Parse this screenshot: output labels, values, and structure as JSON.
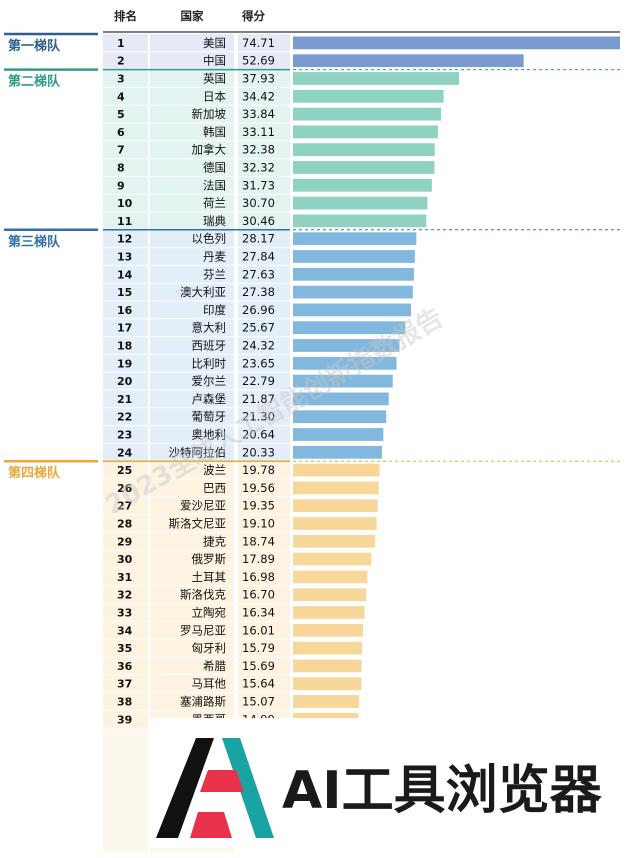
{
  "chart_data": {
    "type": "bar",
    "columns": [
      "排名",
      "国家",
      "得分"
    ],
    "colors": {
      "tier1": "#7b9bd0",
      "tier2": "#8fd2c2",
      "tier3": "#82b8dd",
      "tier4": "#f8d79a",
      "tier1_label": "#2f5f8e",
      "tier2_label": "#2f9a8a",
      "tier3_label": "#3070aa",
      "tier4_label": "#e6a93a"
    },
    "tiers": [
      {
        "label": "第一梯队",
        "start_rank": 1,
        "end_rank": 2,
        "color_key": "tier1"
      },
      {
        "label": "第二梯队",
        "start_rank": 3,
        "end_rank": 11,
        "color_key": "tier2"
      },
      {
        "label": "第三梯队",
        "start_rank": 12,
        "end_rank": 24,
        "color_key": "tier3"
      },
      {
        "label": "第四梯队",
        "start_rank": 25,
        "end_rank": 39,
        "color_key": "tier4"
      }
    ],
    "rows": [
      {
        "rank": "1",
        "country": "美国",
        "score": 74.71
      },
      {
        "rank": "2",
        "country": "中国",
        "score": 52.69
      },
      {
        "rank": "3",
        "country": "英国",
        "score": 37.93
      },
      {
        "rank": "4",
        "country": "日本",
        "score": 34.42
      },
      {
        "rank": "5",
        "country": "新加坡",
        "score": 33.84
      },
      {
        "rank": "6",
        "country": "韩国",
        "score": 33.11
      },
      {
        "rank": "7",
        "country": "加拿大",
        "score": 32.38
      },
      {
        "rank": "8",
        "country": "德国",
        "score": 32.32
      },
      {
        "rank": "9",
        "country": "法国",
        "score": 31.73
      },
      {
        "rank": "10",
        "country": "荷兰",
        "score": 30.7
      },
      {
        "rank": "11",
        "country": "瑞典",
        "score": 30.46
      },
      {
        "rank": "12",
        "country": "以色列",
        "score": 28.17
      },
      {
        "rank": "13",
        "country": "丹麦",
        "score": 27.84
      },
      {
        "rank": "14",
        "country": "芬兰",
        "score": 27.63
      },
      {
        "rank": "15",
        "country": "澳大利亚",
        "score": 27.38
      },
      {
        "rank": "16",
        "country": "印度",
        "score": 26.96
      },
      {
        "rank": "17",
        "country": "意大利",
        "score": 25.67
      },
      {
        "rank": "18",
        "country": "西班牙",
        "score": 24.32
      },
      {
        "rank": "19",
        "country": "比利时",
        "score": 23.65
      },
      {
        "rank": "20",
        "country": "爱尔兰",
        "score": 22.79
      },
      {
        "rank": "21",
        "country": "卢森堡",
        "score": 21.87
      },
      {
        "rank": "22",
        "country": "葡萄牙",
        "score": 21.3
      },
      {
        "rank": "23",
        "country": "奥地利",
        "score": 20.64
      },
      {
        "rank": "24",
        "country": "沙特阿拉伯",
        "score": 20.33
      },
      {
        "rank": "25",
        "country": "波兰",
        "score": 19.78
      },
      {
        "rank": "26",
        "country": "巴西",
        "score": 19.56
      },
      {
        "rank": "27",
        "country": "爱沙尼亚",
        "score": 19.35
      },
      {
        "rank": "28",
        "country": "斯洛文尼亚",
        "score": 19.1
      },
      {
        "rank": "29",
        "country": "捷克",
        "score": 18.74
      },
      {
        "rank": "30",
        "country": "俄罗斯",
        "score": 17.89
      },
      {
        "rank": "31",
        "country": "土耳其",
        "score": 16.98
      },
      {
        "rank": "32",
        "country": "斯洛伐克",
        "score": 16.7
      },
      {
        "rank": "33",
        "country": "立陶宛",
        "score": 16.34
      },
      {
        "rank": "34",
        "country": "罗马尼亚",
        "score": 16.01
      },
      {
        "rank": "35",
        "country": "匈牙利",
        "score": 15.79
      },
      {
        "rank": "36",
        "country": "希腊",
        "score": 15.69
      },
      {
        "rank": "37",
        "country": "马耳他",
        "score": 15.64
      },
      {
        "rank": "38",
        "country": "塞浦路斯",
        "score": 15.07
      },
      {
        "rank": "39",
        "country": "墨西哥",
        "score": 14.99
      }
    ],
    "xlim": [
      0,
      74.71
    ]
  },
  "watermark": "2023全球人工智能创新指数报告",
  "logo": {
    "text": "AI工具浏览器"
  }
}
